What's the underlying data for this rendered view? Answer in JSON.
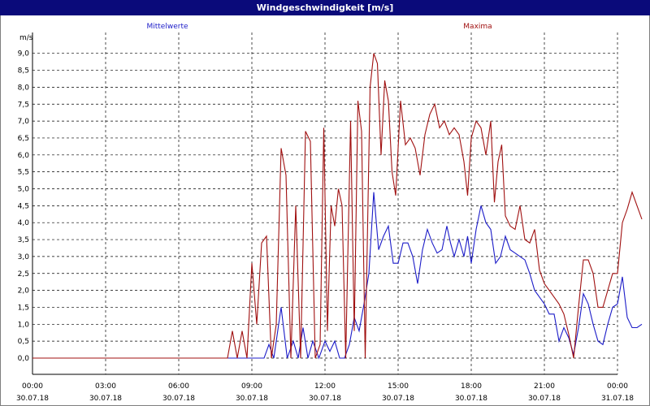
{
  "window": {
    "title": "Windgeschwindigkeit [m/s]"
  },
  "colors": {
    "mean": "#1c1cc8",
    "max": "#a01010",
    "grid": "#000000",
    "title_bar": "#0a0a7a"
  },
  "chart_data": {
    "type": "line",
    "title": "Windgeschwindigkeit [m/s]",
    "ylabel": "m/s",
    "ylim": [
      0,
      9.0
    ],
    "xlim_hours": [
      0,
      24
    ],
    "grid": true,
    "y_ticks": [
      "0,0",
      "0,5",
      "1,0",
      "1,5",
      "2,0",
      "2,5",
      "3,0",
      "3,5",
      "4,0",
      "4,5",
      "5,0",
      "5,5",
      "6,0",
      "6,5",
      "7,0",
      "7,5",
      "8,0",
      "8,5",
      "9,0"
    ],
    "x_ticks": [
      {
        "time": "00:00",
        "date": "30.07.18"
      },
      {
        "time": "03:00",
        "date": "30.07.18"
      },
      {
        "time": "06:00",
        "date": "30.07.18"
      },
      {
        "time": "09:00",
        "date": "30.07.18"
      },
      {
        "time": "12:00",
        "date": "30.07.18"
      },
      {
        "time": "15:00",
        "date": "30.07.18"
      },
      {
        "time": "18:00",
        "date": "30.07.18"
      },
      {
        "time": "21:00",
        "date": "30.07.18"
      },
      {
        "time": "00:00",
        "date": "31.07.18"
      }
    ],
    "legend": {
      "placement": "top",
      "entries": [
        "Mittelwerte",
        "Maxima"
      ]
    },
    "series": [
      {
        "name": "Mittelwerte",
        "color": "#1c1cc8",
        "points": [
          [
            0,
            0
          ],
          [
            8.5,
            0
          ],
          [
            9.5,
            0
          ],
          [
            9.7,
            0.4
          ],
          [
            9.9,
            0
          ],
          [
            10.2,
            1.5
          ],
          [
            10.45,
            0
          ],
          [
            10.7,
            0.5
          ],
          [
            10.9,
            0
          ],
          [
            11.1,
            0.9
          ],
          [
            11.3,
            0
          ],
          [
            11.5,
            0.5
          ],
          [
            11.75,
            0
          ],
          [
            12.0,
            0.5
          ],
          [
            12.2,
            0.2
          ],
          [
            12.4,
            0.5
          ],
          [
            12.6,
            0
          ],
          [
            12.8,
            0
          ],
          [
            13.0,
            0.4
          ],
          [
            13.2,
            1.2
          ],
          [
            13.4,
            0.8
          ],
          [
            13.6,
            1.6
          ],
          [
            13.8,
            2.5
          ],
          [
            14.0,
            4.9
          ],
          [
            14.2,
            3.2
          ],
          [
            14.4,
            3.6
          ],
          [
            14.6,
            3.9
          ],
          [
            14.8,
            2.8
          ],
          [
            15.0,
            2.8
          ],
          [
            15.2,
            3.4
          ],
          [
            15.4,
            3.4
          ],
          [
            15.6,
            3.0
          ],
          [
            15.8,
            2.2
          ],
          [
            16.0,
            3.2
          ],
          [
            16.2,
            3.8
          ],
          [
            16.4,
            3.4
          ],
          [
            16.6,
            3.1
          ],
          [
            16.8,
            3.2
          ],
          [
            17.0,
            3.9
          ],
          [
            17.15,
            3.4
          ],
          [
            17.3,
            3.0
          ],
          [
            17.5,
            3.5
          ],
          [
            17.7,
            3.0
          ],
          [
            17.85,
            3.6
          ],
          [
            18.0,
            2.8
          ],
          [
            18.2,
            3.8
          ],
          [
            18.4,
            4.5
          ],
          [
            18.6,
            4.0
          ],
          [
            18.8,
            3.8
          ],
          [
            19.0,
            2.8
          ],
          [
            19.2,
            3.0
          ],
          [
            19.4,
            3.6
          ],
          [
            19.6,
            3.2
          ],
          [
            19.8,
            3.1
          ],
          [
            20.0,
            3.0
          ],
          [
            20.2,
            2.9
          ],
          [
            20.4,
            2.5
          ],
          [
            20.6,
            2.0
          ],
          [
            20.8,
            1.8
          ],
          [
            21.0,
            1.6
          ],
          [
            21.2,
            1.3
          ],
          [
            21.4,
            1.3
          ],
          [
            21.6,
            0.5
          ],
          [
            21.8,
            0.9
          ],
          [
            22.0,
            0.6
          ],
          [
            22.2,
            0.1
          ],
          [
            22.4,
            0.9
          ],
          [
            22.6,
            1.9
          ],
          [
            22.8,
            1.6
          ],
          [
            23.0,
            1.0
          ],
          [
            23.2,
            0.5
          ],
          [
            23.4,
            0.4
          ],
          [
            23.6,
            1.0
          ],
          [
            23.8,
            1.5
          ],
          [
            24.0,
            1.6
          ],
          [
            24.2,
            2.4
          ],
          [
            24.4,
            1.2
          ],
          [
            24.6,
            0.9
          ],
          [
            24.8,
            0.9
          ],
          [
            25.0,
            1.0
          ]
        ]
      },
      {
        "name": "Maxima",
        "color": "#a01010",
        "points": [
          [
            0,
            0
          ],
          [
            8.0,
            0
          ],
          [
            8.2,
            0.8
          ],
          [
            8.4,
            0
          ],
          [
            8.6,
            0.8
          ],
          [
            8.8,
            0
          ],
          [
            9.0,
            2.8
          ],
          [
            9.2,
            1.0
          ],
          [
            9.4,
            3.4
          ],
          [
            9.6,
            3.6
          ],
          [
            9.8,
            0
          ],
          [
            10.0,
            1.0
          ],
          [
            10.2,
            6.2
          ],
          [
            10.4,
            5.4
          ],
          [
            10.6,
            0
          ],
          [
            10.8,
            4.5
          ],
          [
            11.0,
            0
          ],
          [
            11.2,
            6.7
          ],
          [
            11.4,
            6.4
          ],
          [
            11.6,
            0
          ],
          [
            11.8,
            0.4
          ],
          [
            11.95,
            6.8
          ],
          [
            12.1,
            0.8
          ],
          [
            12.25,
            4.5
          ],
          [
            12.4,
            3.9
          ],
          [
            12.55,
            5.0
          ],
          [
            12.7,
            4.5
          ],
          [
            12.85,
            0
          ],
          [
            13.05,
            7.0
          ],
          [
            13.2,
            0.8
          ],
          [
            13.35,
            7.6
          ],
          [
            13.5,
            6.7
          ],
          [
            13.65,
            0
          ],
          [
            13.85,
            8.0
          ],
          [
            14.0,
            9.0
          ],
          [
            14.15,
            8.7
          ],
          [
            14.3,
            6.0
          ],
          [
            14.45,
            8.2
          ],
          [
            14.6,
            7.6
          ],
          [
            14.75,
            5.5
          ],
          [
            14.9,
            4.8
          ],
          [
            15.1,
            7.6
          ],
          [
            15.3,
            6.3
          ],
          [
            15.5,
            6.5
          ],
          [
            15.7,
            6.2
          ],
          [
            15.9,
            5.4
          ],
          [
            16.1,
            6.6
          ],
          [
            16.3,
            7.2
          ],
          [
            16.5,
            7.5
          ],
          [
            16.7,
            6.8
          ],
          [
            16.9,
            7.0
          ],
          [
            17.1,
            6.6
          ],
          [
            17.3,
            6.8
          ],
          [
            17.5,
            6.6
          ],
          [
            17.7,
            5.8
          ],
          [
            17.85,
            4.8
          ],
          [
            18.0,
            6.5
          ],
          [
            18.2,
            7.0
          ],
          [
            18.4,
            6.8
          ],
          [
            18.6,
            6.0
          ],
          [
            18.8,
            7.0
          ],
          [
            18.95,
            4.6
          ],
          [
            19.1,
            5.8
          ],
          [
            19.25,
            6.3
          ],
          [
            19.4,
            4.2
          ],
          [
            19.6,
            3.9
          ],
          [
            19.8,
            3.8
          ],
          [
            20.0,
            4.5
          ],
          [
            20.2,
            3.5
          ],
          [
            20.4,
            3.4
          ],
          [
            20.6,
            3.8
          ],
          [
            20.8,
            2.6
          ],
          [
            21.0,
            2.2
          ],
          [
            21.2,
            2.0
          ],
          [
            21.4,
            1.8
          ],
          [
            21.6,
            1.6
          ],
          [
            21.8,
            1.3
          ],
          [
            22.0,
            0.7
          ],
          [
            22.2,
            0.0
          ],
          [
            22.4,
            1.5
          ],
          [
            22.6,
            2.9
          ],
          [
            22.8,
            2.9
          ],
          [
            23.0,
            2.5
          ],
          [
            23.2,
            1.5
          ],
          [
            23.4,
            1.5
          ],
          [
            23.6,
            2.0
          ],
          [
            23.8,
            2.5
          ],
          [
            24.0,
            2.5
          ],
          [
            24.2,
            4.0
          ],
          [
            24.4,
            4.4
          ],
          [
            24.6,
            4.9
          ],
          [
            24.8,
            4.5
          ],
          [
            25.0,
            4.1
          ]
        ]
      }
    ]
  }
}
